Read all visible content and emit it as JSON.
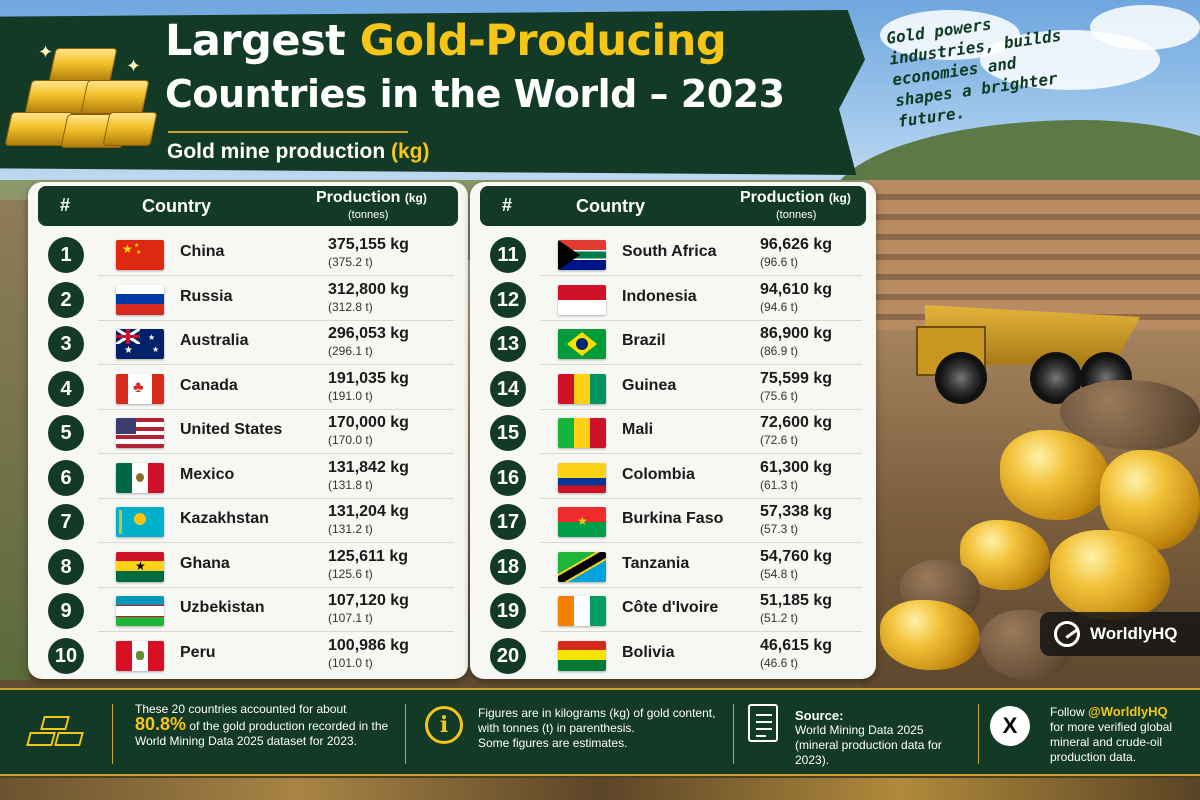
{
  "header": {
    "title_part1": "Largest ",
    "title_highlight": "Gold-Producing",
    "title_line2": "Countries in the World – 2023",
    "subtitle_main": "Gold mine production ",
    "subtitle_unit": "(kg)",
    "tagline": "Gold powers industries, builds economies and shapes a brighter future."
  },
  "table_headers": {
    "rank": "#",
    "country": "Country",
    "production": "Production",
    "production_unit": "(kg)",
    "tonnes": "(tonnes)"
  },
  "rows_left": [
    {
      "rank": "1",
      "country": "China",
      "kg": "375,155 kg",
      "t": "(375.2 t)",
      "flag": "china"
    },
    {
      "rank": "2",
      "country": "Russia",
      "kg": "312,800 kg",
      "t": "(312.8 t)",
      "flag": "russia"
    },
    {
      "rank": "3",
      "country": "Australia",
      "kg": "296,053 kg",
      "t": "(296.1 t)",
      "flag": "australia"
    },
    {
      "rank": "4",
      "country": "Canada",
      "kg": "191,035 kg",
      "t": "(191.0 t)",
      "flag": "canada"
    },
    {
      "rank": "5",
      "country": "United States",
      "kg": "170,000 kg",
      "t": "(170.0 t)",
      "flag": "usa"
    },
    {
      "rank": "6",
      "country": "Mexico",
      "kg": "131,842 kg",
      "t": "(131.8 t)",
      "flag": "mexico"
    },
    {
      "rank": "7",
      "country": "Kazakhstan",
      "kg": "131,204 kg",
      "t": "(131.2 t)",
      "flag": "kazakhstan"
    },
    {
      "rank": "8",
      "country": "Ghana",
      "kg": "125,611 kg",
      "t": "(125.6 t)",
      "flag": "ghana"
    },
    {
      "rank": "9",
      "country": "Uzbekistan",
      "kg": "107,120 kg",
      "t": "(107.1 t)",
      "flag": "uzbekistan"
    },
    {
      "rank": "10",
      "country": "Peru",
      "kg": "100,986 kg",
      "t": "(101.0 t)",
      "flag": "peru"
    }
  ],
  "rows_right": [
    {
      "rank": "11",
      "country": "South Africa",
      "kg": "96,626 kg",
      "t": "(96.6 t)",
      "flag": "south-africa"
    },
    {
      "rank": "12",
      "country": "Indonesia",
      "kg": "94,610 kg",
      "t": "(94.6 t)",
      "flag": "indonesia"
    },
    {
      "rank": "13",
      "country": "Brazil",
      "kg": "86,900 kg",
      "t": "(86.9 t)",
      "flag": "brazil"
    },
    {
      "rank": "14",
      "country": "Guinea",
      "kg": "75,599 kg",
      "t": "(75.6 t)",
      "flag": "guinea"
    },
    {
      "rank": "15",
      "country": "Mali",
      "kg": "72,600 kg",
      "t": "(72.6 t)",
      "flag": "mali"
    },
    {
      "rank": "16",
      "country": "Colombia",
      "kg": "61,300 kg",
      "t": "(61.3 t)",
      "flag": "colombia"
    },
    {
      "rank": "17",
      "country": "Burkina Faso",
      "kg": "57,338 kg",
      "t": "(57.3 t)",
      "flag": "burkina-faso"
    },
    {
      "rank": "18",
      "country": "Tanzania",
      "kg": "54,760 kg",
      "t": "(54.8 t)",
      "flag": "tanzania"
    },
    {
      "rank": "19",
      "country": "Côte d'Ivoire",
      "kg": "51,185 kg",
      "t": "(51.2 t)",
      "flag": "cote-divoire"
    },
    {
      "rank": "20",
      "country": "Bolivia",
      "kg": "46,615 kg",
      "t": "(46.6 t)",
      "flag": "bolivia"
    }
  ],
  "brand": {
    "name": "WorldlyHQ",
    "icon": "worldlyhq-logo-icon"
  },
  "footer": {
    "share_line1": "These 20 countries accounted for about",
    "share_pct": "80.8%",
    "share_line2": " of the gold production recorded in the",
    "share_line3": "World Mining Data 2025 dataset for 2023.",
    "note_line1": "Figures are in kilograms (kg) of gold content,",
    "note_line2": "with tonnes (t) in parenthesis.",
    "note_line3": "Some figures are estimates.",
    "source_label": "Source:",
    "source_line1": "World Mining Data 2025",
    "source_line2": "(mineral production data for 2023).",
    "follow_label": "Follow ",
    "follow_handle": "@WorldlyHQ",
    "follow_line2": "for more verified global",
    "follow_line3": "mineral and crude-oil",
    "follow_line4": "production data."
  },
  "colors": {
    "dark_green": "#123a26",
    "gold": "#f5c518",
    "panel": "#f7f7f4"
  }
}
